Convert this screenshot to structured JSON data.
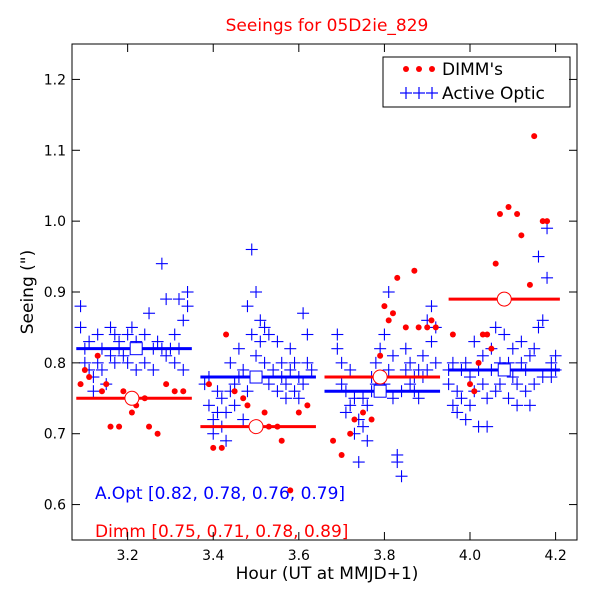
{
  "chart_data": {
    "type": "scatter",
    "title": "Seeings for 05D2ie_829",
    "xlabel": "Hour (UT at MMJD+1)",
    "ylabel": "Seeing (\")",
    "xlim": [
      3.07,
      4.25
    ],
    "ylim": [
      0.55,
      1.25
    ],
    "xticks": [
      3.2,
      3.4,
      3.6,
      3.8,
      4.0,
      4.2
    ],
    "xtick_labels": [
      "3.2",
      "3.4",
      "3.6",
      "3.8",
      "4.0",
      "4.2"
    ],
    "yticks": [
      0.6,
      0.7,
      0.8,
      0.9,
      1.0,
      1.1,
      1.2
    ],
    "ytick_labels": [
      "0.6",
      "0.7",
      "0.8",
      "0.9",
      "1.0",
      "1.1",
      "1.2"
    ],
    "legend": {
      "position": "top-right",
      "entries": [
        {
          "label": "DIMM's",
          "marker": "dot",
          "color": "#ff0000"
        },
        {
          "label": "Active Optic",
          "marker": "plus",
          "color": "#0000ff"
        }
      ]
    },
    "annotations": [
      {
        "text": "A.Opt [0.82, 0.78, 0.76, 0.79]",
        "color": "#0000ff"
      },
      {
        "text": "Dimm [0.75, 0.71, 0.78, 0.89]",
        "color": "#ff0000"
      }
    ],
    "series": [
      {
        "name": "DIMM's",
        "color": "#ff0000",
        "marker": "dot",
        "points": [
          [
            3.09,
            0.77
          ],
          [
            3.1,
            0.79
          ],
          [
            3.11,
            0.78
          ],
          [
            3.13,
            0.81
          ],
          [
            3.14,
            0.76
          ],
          [
            3.15,
            0.77
          ],
          [
            3.16,
            0.71
          ],
          [
            3.18,
            0.71
          ],
          [
            3.19,
            0.76
          ],
          [
            3.2,
            0.75
          ],
          [
            3.21,
            0.73
          ],
          [
            3.22,
            0.74
          ],
          [
            3.24,
            0.75
          ],
          [
            3.25,
            0.71
          ],
          [
            3.27,
            0.7
          ],
          [
            3.29,
            0.77
          ],
          [
            3.31,
            0.76
          ],
          [
            3.33,
            0.76
          ],
          [
            3.39,
            0.77
          ],
          [
            3.4,
            0.68
          ],
          [
            3.42,
            0.68
          ],
          [
            3.43,
            0.84
          ],
          [
            3.45,
            0.76
          ],
          [
            3.47,
            0.75
          ],
          [
            3.48,
            0.74
          ],
          [
            3.49,
            0.71
          ],
          [
            3.5,
            0.71
          ],
          [
            3.52,
            0.73
          ],
          [
            3.53,
            0.71
          ],
          [
            3.55,
            0.71
          ],
          [
            3.56,
            0.69
          ],
          [
            3.58,
            0.62
          ],
          [
            3.6,
            0.73
          ],
          [
            3.62,
            0.74
          ],
          [
            3.68,
            0.69
          ],
          [
            3.7,
            0.67
          ],
          [
            3.72,
            0.7
          ],
          [
            3.73,
            0.72
          ],
          [
            3.75,
            0.73
          ],
          [
            3.77,
            0.72
          ],
          [
            3.78,
            0.78
          ],
          [
            3.79,
            0.81
          ],
          [
            3.8,
            0.88
          ],
          [
            3.81,
            0.86
          ],
          [
            3.82,
            0.87
          ],
          [
            3.83,
            0.92
          ],
          [
            3.85,
            0.85
          ],
          [
            3.87,
            0.93
          ],
          [
            3.88,
            0.85
          ],
          [
            3.9,
            0.85
          ],
          [
            3.91,
            0.86
          ],
          [
            3.92,
            0.85
          ],
          [
            3.96,
            0.84
          ],
          [
            4.0,
            0.77
          ],
          [
            4.01,
            0.76
          ],
          [
            4.02,
            0.8
          ],
          [
            4.03,
            0.84
          ],
          [
            4.04,
            0.84
          ],
          [
            4.05,
            0.82
          ],
          [
            4.06,
            0.94
          ],
          [
            4.07,
            1.01
          ],
          [
            4.09,
            1.02
          ],
          [
            4.11,
            1.01
          ],
          [
            4.12,
            0.98
          ],
          [
            4.14,
            0.91
          ],
          [
            4.15,
            1.12
          ],
          [
            4.17,
            1.0
          ],
          [
            4.18,
            1.0
          ]
        ]
      },
      {
        "name": "Active Optic",
        "color": "#0000ff",
        "marker": "plus",
        "points": [
          [
            3.09,
            0.88
          ],
          [
            3.09,
            0.85
          ],
          [
            3.1,
            0.82
          ],
          [
            3.1,
            0.8
          ],
          [
            3.11,
            0.83
          ],
          [
            3.11,
            0.79
          ],
          [
            3.12,
            0.78
          ],
          [
            3.12,
            0.76
          ],
          [
            3.13,
            0.84
          ],
          [
            3.13,
            0.8
          ],
          [
            3.14,
            0.82
          ],
          [
            3.14,
            0.79
          ],
          [
            3.15,
            0.77
          ],
          [
            3.16,
            0.85
          ],
          [
            3.16,
            0.81
          ],
          [
            3.17,
            0.84
          ],
          [
            3.17,
            0.8
          ],
          [
            3.18,
            0.83
          ],
          [
            3.18,
            0.82
          ],
          [
            3.19,
            0.81
          ],
          [
            3.2,
            0.84
          ],
          [
            3.2,
            0.8
          ],
          [
            3.21,
            0.82
          ],
          [
            3.21,
            0.85
          ],
          [
            3.22,
            0.79
          ],
          [
            3.22,
            0.83
          ],
          [
            3.23,
            0.82
          ],
          [
            3.24,
            0.8
          ],
          [
            3.24,
            0.84
          ],
          [
            3.25,
            0.87
          ],
          [
            3.26,
            0.82
          ],
          [
            3.26,
            0.79
          ],
          [
            3.27,
            0.83
          ],
          [
            3.28,
            0.94
          ],
          [
            3.28,
            0.82
          ],
          [
            3.29,
            0.89
          ],
          [
            3.29,
            0.81
          ],
          [
            3.3,
            0.82
          ],
          [
            3.31,
            0.84
          ],
          [
            3.31,
            0.8
          ],
          [
            3.32,
            0.89
          ],
          [
            3.32,
            0.82
          ],
          [
            3.33,
            0.86
          ],
          [
            3.33,
            0.79
          ],
          [
            3.34,
            0.9
          ],
          [
            3.34,
            0.88
          ],
          [
            3.38,
            0.77
          ],
          [
            3.39,
            0.78
          ],
          [
            3.39,
            0.74
          ],
          [
            3.4,
            0.72
          ],
          [
            3.4,
            0.7
          ],
          [
            3.41,
            0.73
          ],
          [
            3.41,
            0.76
          ],
          [
            3.42,
            0.71
          ],
          [
            3.42,
            0.75
          ],
          [
            3.43,
            0.73
          ],
          [
            3.43,
            0.69
          ],
          [
            3.44,
            0.8
          ],
          [
            3.44,
            0.76
          ],
          [
            3.45,
            0.77
          ],
          [
            3.45,
            0.74
          ],
          [
            3.46,
            0.82
          ],
          [
            3.46,
            0.78
          ],
          [
            3.47,
            0.72
          ],
          [
            3.47,
            0.79
          ],
          [
            3.48,
            0.88
          ],
          [
            3.48,
            0.76
          ],
          [
            3.49,
            0.96
          ],
          [
            3.49,
            0.84
          ],
          [
            3.5,
            0.9
          ],
          [
            3.5,
            0.81
          ],
          [
            3.5,
            0.78
          ],
          [
            3.51,
            0.86
          ],
          [
            3.51,
            0.83
          ],
          [
            3.52,
            0.8
          ],
          [
            3.52,
            0.85
          ],
          [
            3.53,
            0.84
          ],
          [
            3.53,
            0.77
          ],
          [
            3.54,
            0.79
          ],
          [
            3.55,
            0.83
          ],
          [
            3.55,
            0.76
          ],
          [
            3.56,
            0.78
          ],
          [
            3.56,
            0.8
          ],
          [
            3.57,
            0.77
          ],
          [
            3.57,
            0.75
          ],
          [
            3.58,
            0.79
          ],
          [
            3.58,
            0.82
          ],
          [
            3.59,
            0.76
          ],
          [
            3.59,
            0.8
          ],
          [
            3.6,
            0.78
          ],
          [
            3.6,
            0.75
          ],
          [
            3.61,
            0.87
          ],
          [
            3.61,
            0.77
          ],
          [
            3.62,
            0.8
          ],
          [
            3.62,
            0.84
          ],
          [
            3.63,
            0.79
          ],
          [
            3.69,
            0.84
          ],
          [
            3.69,
            0.82
          ],
          [
            3.7,
            0.8
          ],
          [
            3.7,
            0.77
          ],
          [
            3.71,
            0.76
          ],
          [
            3.71,
            0.73
          ],
          [
            3.72,
            0.79
          ],
          [
            3.72,
            0.74
          ],
          [
            3.73,
            0.7
          ],
          [
            3.73,
            0.75
          ],
          [
            3.74,
            0.72
          ],
          [
            3.74,
            0.66
          ],
          [
            3.75,
            0.75
          ],
          [
            3.75,
            0.71
          ],
          [
            3.76,
            0.69
          ],
          [
            3.76,
            0.74
          ],
          [
            3.77,
            0.76
          ],
          [
            3.77,
            0.78
          ],
          [
            3.78,
            0.77
          ],
          [
            3.78,
            0.8
          ],
          [
            3.79,
            0.82
          ],
          [
            3.79,
            0.78
          ],
          [
            3.8,
            0.84
          ],
          [
            3.8,
            0.77
          ],
          [
            3.81,
            0.79
          ],
          [
            3.81,
            0.9
          ],
          [
            3.82,
            0.81
          ],
          [
            3.82,
            0.75
          ],
          [
            3.83,
            0.67
          ],
          [
            3.83,
            0.66
          ],
          [
            3.84,
            0.64
          ],
          [
            3.84,
            0.76
          ],
          [
            3.85,
            0.79
          ],
          [
            3.85,
            0.82
          ],
          [
            3.86,
            0.77
          ],
          [
            3.86,
            0.8
          ],
          [
            3.87,
            0.78
          ],
          [
            3.87,
            0.76
          ],
          [
            3.88,
            0.79
          ],
          [
            3.88,
            0.75
          ],
          [
            3.89,
            0.78
          ],
          [
            3.89,
            0.81
          ],
          [
            3.9,
            0.79
          ],
          [
            3.9,
            0.86
          ],
          [
            3.91,
            0.88
          ],
          [
            3.91,
            0.83
          ],
          [
            3.92,
            0.8
          ],
          [
            3.92,
            0.85
          ],
          [
            3.95,
            0.79
          ],
          [
            3.95,
            0.77
          ],
          [
            3.96,
            0.8
          ],
          [
            3.96,
            0.74
          ],
          [
            3.97,
            0.76
          ],
          [
            3.97,
            0.73
          ],
          [
            3.98,
            0.79
          ],
          [
            3.98,
            0.75
          ],
          [
            3.99,
            0.72
          ],
          [
            3.99,
            0.8
          ],
          [
            4.0,
            0.78
          ],
          [
            4.0,
            0.74
          ],
          [
            4.01,
            0.83
          ],
          [
            4.01,
            0.76
          ],
          [
            4.02,
            0.71
          ],
          [
            4.02,
            0.79
          ],
          [
            4.03,
            0.77
          ],
          [
            4.03,
            0.81
          ],
          [
            4.04,
            0.75
          ],
          [
            4.04,
            0.71
          ],
          [
            4.05,
            0.79
          ],
          [
            4.05,
            0.82
          ],
          [
            4.06,
            0.76
          ],
          [
            4.06,
            0.85
          ],
          [
            4.07,
            0.8
          ],
          [
            4.07,
            0.77
          ],
          [
            4.08,
            0.84
          ],
          [
            4.08,
            0.79
          ],
          [
            4.09,
            0.8
          ],
          [
            4.09,
            0.75
          ],
          [
            4.1,
            0.82
          ],
          [
            4.1,
            0.78
          ],
          [
            4.11,
            0.77
          ],
          [
            4.11,
            0.74
          ],
          [
            4.12,
            0.8
          ],
          [
            4.12,
            0.83
          ],
          [
            4.13,
            0.76
          ],
          [
            4.13,
            0.79
          ],
          [
            4.14,
            0.74
          ],
          [
            4.14,
            0.81
          ],
          [
            4.15,
            0.77
          ],
          [
            4.15,
            0.82
          ],
          [
            4.16,
            0.95
          ],
          [
            4.16,
            0.85
          ],
          [
            4.17,
            0.86
          ],
          [
            4.17,
            0.78
          ],
          [
            4.18,
            0.99
          ],
          [
            4.18,
            0.92
          ],
          [
            4.19,
            0.8
          ],
          [
            4.19,
            0.78
          ],
          [
            4.2,
            0.81
          ],
          [
            4.2,
            0.79
          ]
        ]
      }
    ],
    "summary": {
      "active_optic_means": [
        {
          "x_start": 3.08,
          "x_end": 3.35,
          "value": 0.82,
          "x_marker": 3.22
        },
        {
          "x_start": 3.37,
          "x_end": 3.64,
          "value": 0.78,
          "x_marker": 3.5
        },
        {
          "x_start": 3.66,
          "x_end": 3.93,
          "value": 0.76,
          "x_marker": 3.79
        },
        {
          "x_start": 3.95,
          "x_end": 4.21,
          "value": 0.79,
          "x_marker": 4.08
        }
      ],
      "dimm_means": [
        {
          "x_start": 3.08,
          "x_end": 3.35,
          "value": 0.75,
          "x_marker": 3.21
        },
        {
          "x_start": 3.37,
          "x_end": 3.64,
          "value": 0.71,
          "x_marker": 3.5
        },
        {
          "x_start": 3.66,
          "x_end": 3.93,
          "value": 0.78,
          "x_marker": 3.79
        },
        {
          "x_start": 3.95,
          "x_end": 4.21,
          "value": 0.89,
          "x_marker": 4.08
        }
      ]
    }
  }
}
